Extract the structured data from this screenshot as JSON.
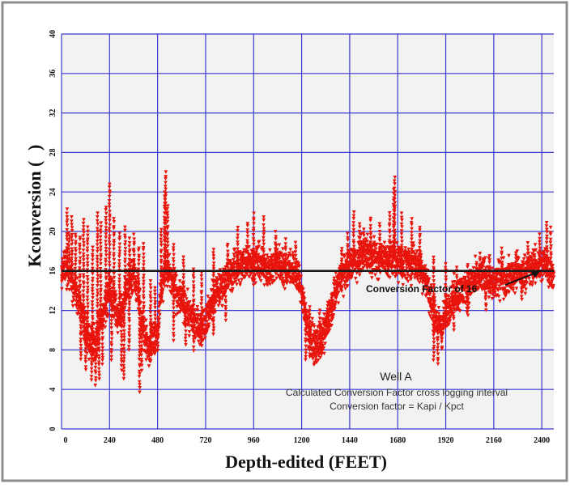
{
  "chart_data": {
    "type": "scatter",
    "title": "",
    "xlabel": "Depth-edited (FEET)",
    "ylabel_left": "Kconversion (",
    "ylabel_right": ")",
    "xlim": [
      0,
      2460
    ],
    "ylim": [
      0,
      40
    ],
    "x_ticks": [
      "0",
      "240",
      "480",
      "720",
      "960",
      "1200",
      "1440",
      "1680",
      "1920",
      "2160",
      "2400"
    ],
    "x_tick_values": [
      0,
      240,
      480,
      720,
      960,
      1200,
      1440,
      1680,
      1920,
      2160,
      2400
    ],
    "y_ticks": [
      "0",
      "4",
      "8",
      "12",
      "16",
      "20",
      "24",
      "28",
      "32",
      "36",
      "40"
    ],
    "y_tick_values": [
      0,
      4,
      8,
      12,
      16,
      20,
      24,
      28,
      32,
      36,
      40
    ],
    "grid": true,
    "marker": "down-triangle",
    "colors": {
      "points": "#e8140c",
      "grid": "#3a3acf",
      "reference_line": "#1a1a1a",
      "plot_bg": "#f2f2f2"
    },
    "reference_line": {
      "y": 16,
      "label": "Conversion Factor of 16"
    },
    "annotations": {
      "well": "Well A",
      "line1": "Calculated Conversion Factor cross logging interval",
      "line2": "Conversion factor = Kapi / Kpct"
    },
    "trend": [
      [
        0,
        15.5
      ],
      [
        20,
        16.5
      ],
      [
        40,
        16
      ],
      [
        60,
        14.5
      ],
      [
        80,
        13
      ],
      [
        100,
        11.5
      ],
      [
        120,
        10
      ],
      [
        140,
        9
      ],
      [
        160,
        8.5
      ],
      [
        180,
        9.5
      ],
      [
        200,
        11
      ],
      [
        220,
        12.5
      ],
      [
        240,
        14
      ],
      [
        260,
        13
      ],
      [
        280,
        11.5
      ],
      [
        300,
        12
      ],
      [
        320,
        13.5
      ],
      [
        340,
        15
      ],
      [
        360,
        16
      ],
      [
        380,
        14
      ],
      [
        400,
        11
      ],
      [
        420,
        9
      ],
      [
        440,
        8.5
      ],
      [
        460,
        9
      ],
      [
        480,
        10
      ],
      [
        500,
        14
      ],
      [
        520,
        16.5
      ],
      [
        540,
        15.5
      ],
      [
        560,
        14.5
      ],
      [
        580,
        13.5
      ],
      [
        600,
        13
      ],
      [
        620,
        12
      ],
      [
        640,
        11.5
      ],
      [
        660,
        11
      ],
      [
        680,
        10.5
      ],
      [
        700,
        10.5
      ],
      [
        720,
        11
      ],
      [
        740,
        12
      ],
      [
        760,
        13
      ],
      [
        780,
        14
      ],
      [
        800,
        14.5
      ],
      [
        820,
        15
      ],
      [
        840,
        15.5
      ],
      [
        860,
        16
      ],
      [
        880,
        16.5
      ],
      [
        900,
        16.5
      ],
      [
        920,
        17
      ],
      [
        940,
        17
      ],
      [
        960,
        16.5
      ],
      [
        980,
        17
      ],
      [
        1000,
        16.5
      ],
      [
        1020,
        16.5
      ],
      [
        1040,
        16
      ],
      [
        1060,
        16.5
      ],
      [
        1080,
        17
      ],
      [
        1100,
        16.5
      ],
      [
        1120,
        16
      ],
      [
        1140,
        16.5
      ],
      [
        1160,
        16
      ],
      [
        1180,
        15.5
      ],
      [
        1200,
        14
      ],
      [
        1220,
        11.5
      ],
      [
        1240,
        9.5
      ],
      [
        1260,
        8.5
      ],
      [
        1280,
        8.5
      ],
      [
        1300,
        9
      ],
      [
        1320,
        10
      ],
      [
        1340,
        11.5
      ],
      [
        1360,
        13
      ],
      [
        1380,
        14.5
      ],
      [
        1400,
        15.5
      ],
      [
        1420,
        16
      ],
      [
        1440,
        16.5
      ],
      [
        1460,
        17
      ],
      [
        1480,
        17
      ],
      [
        1500,
        17.5
      ],
      [
        1520,
        18
      ],
      [
        1540,
        17.5
      ],
      [
        1560,
        17.5
      ],
      [
        1580,
        17
      ],
      [
        1600,
        17.5
      ],
      [
        1620,
        17
      ],
      [
        1640,
        17
      ],
      [
        1660,
        17.5
      ],
      [
        1680,
        17
      ],
      [
        1700,
        16.5
      ],
      [
        1720,
        17
      ],
      [
        1740,
        16.5
      ],
      [
        1760,
        17
      ],
      [
        1780,
        16.5
      ],
      [
        1800,
        16
      ],
      [
        1820,
        15
      ],
      [
        1840,
        13.5
      ],
      [
        1860,
        11.5
      ],
      [
        1880,
        10.5
      ],
      [
        1900,
        10.5
      ],
      [
        1920,
        11.5
      ],
      [
        1940,
        12.5
      ],
      [
        1960,
        13.5
      ],
      [
        1980,
        13.5
      ],
      [
        2000,
        14
      ],
      [
        2020,
        14
      ],
      [
        2040,
        14.5
      ],
      [
        2060,
        15
      ],
      [
        2080,
        15
      ],
      [
        2100,
        15.5
      ],
      [
        2120,
        15.5
      ],
      [
        2140,
        15
      ],
      [
        2160,
        14.5
      ],
      [
        2180,
        15
      ],
      [
        2200,
        15.5
      ],
      [
        2220,
        15
      ],
      [
        2240,
        15.5
      ],
      [
        2260,
        15.5
      ],
      [
        2280,
        16
      ],
      [
        2300,
        15.5
      ],
      [
        2320,
        16
      ],
      [
        2340,
        16
      ],
      [
        2360,
        16.5
      ],
      [
        2380,
        16.5
      ],
      [
        2400,
        16.5
      ],
      [
        2420,
        17
      ],
      [
        2440,
        16
      ],
      [
        2460,
        15
      ]
    ],
    "spread": 2.6,
    "spikes": [
      [
        28,
        22.5
      ],
      [
        38,
        20
      ],
      [
        52,
        21.5
      ],
      [
        70,
        20
      ],
      [
        92,
        19.5
      ],
      [
        110,
        21.5
      ],
      [
        130,
        20.5
      ],
      [
        155,
        18.5
      ],
      [
        180,
        22
      ],
      [
        196,
        21
      ],
      [
        222,
        22.5
      ],
      [
        240,
        25.2
      ],
      [
        262,
        21.5
      ],
      [
        290,
        20
      ],
      [
        318,
        20.5
      ],
      [
        340,
        19.5
      ],
      [
        362,
        20
      ],
      [
        386,
        18.5
      ],
      [
        410,
        19
      ],
      [
        445,
        15
      ],
      [
        468,
        14.5
      ],
      [
        498,
        20.5
      ],
      [
        515,
        24
      ],
      [
        520,
        26
      ],
      [
        530,
        23
      ],
      [
        560,
        19
      ],
      [
        610,
        17.5
      ],
      [
        660,
        16.5
      ],
      [
        700,
        16
      ],
      [
        760,
        18.5
      ],
      [
        830,
        19
      ],
      [
        880,
        20.5
      ],
      [
        930,
        21
      ],
      [
        960,
        22
      ],
      [
        1010,
        21.5
      ],
      [
        1070,
        20
      ],
      [
        1120,
        19.5
      ],
      [
        1170,
        19
      ],
      [
        1240,
        12.5
      ],
      [
        1290,
        12
      ],
      [
        1330,
        13
      ],
      [
        1400,
        18.5
      ],
      [
        1430,
        20
      ],
      [
        1460,
        22
      ],
      [
        1490,
        21
      ],
      [
        1510,
        20.5
      ],
      [
        1545,
        21.5
      ],
      [
        1590,
        21
      ],
      [
        1640,
        22
      ],
      [
        1660,
        24.5
      ],
      [
        1665,
        25.7
      ],
      [
        1700,
        22
      ],
      [
        1750,
        21.5
      ],
      [
        1790,
        20.5
      ],
      [
        1860,
        17.5
      ],
      [
        1920,
        17
      ],
      [
        1975,
        16.5
      ],
      [
        2030,
        17
      ],
      [
        2090,
        18
      ],
      [
        2140,
        17.5
      ],
      [
        2200,
        18.5
      ],
      [
        2270,
        18
      ],
      [
        2330,
        19
      ],
      [
        2390,
        20
      ],
      [
        2425,
        21.2
      ],
      [
        2445,
        20.5
      ]
    ],
    "dips": [
      [
        96,
        7
      ],
      [
        120,
        6
      ],
      [
        150,
        5
      ],
      [
        170,
        4.5
      ],
      [
        188,
        5
      ],
      [
        205,
        6.5
      ],
      [
        250,
        7
      ],
      [
        300,
        6
      ],
      [
        312,
        5
      ],
      [
        338,
        8
      ],
      [
        390,
        3.8
      ],
      [
        400,
        6
      ],
      [
        448,
        7.5
      ],
      [
        482,
        8
      ],
      [
        560,
        9
      ],
      [
        620,
        8.5
      ],
      [
        660,
        8
      ],
      [
        700,
        8.5
      ],
      [
        760,
        9.5
      ],
      [
        820,
        11
      ],
      [
        1220,
        7
      ],
      [
        1240,
        7.2
      ],
      [
        1270,
        7
      ],
      [
        1300,
        7.5
      ],
      [
        1350,
        10.5
      ],
      [
        1860,
        7
      ],
      [
        1880,
        6.5
      ],
      [
        1900,
        8
      ],
      [
        1960,
        10
      ],
      [
        2030,
        11.5
      ],
      [
        2120,
        12
      ],
      [
        2300,
        13
      ]
    ]
  }
}
